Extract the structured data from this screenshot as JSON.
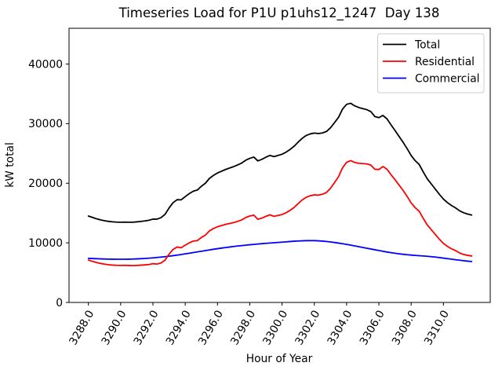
{
  "chart_data": {
    "type": "line",
    "title": "Timeseries Load for P1U p1uhs12_1247  Day 138",
    "xlabel": "Hour of Year",
    "ylabel": "kW total",
    "grid": false,
    "legend_position": "upper right",
    "x_tick_rotation": 60,
    "xlim": [
      3286.8,
      3312.9
    ],
    "ylim": [
      0,
      46000
    ],
    "xticks": [
      3288,
      3290,
      3292,
      3294,
      3296,
      3298,
      3300,
      3302,
      3304,
      3306,
      3308,
      3310
    ],
    "xtick_labels": [
      "3288.0",
      "3290.0",
      "3292.0",
      "3294.0",
      "3296.0",
      "3298.0",
      "3300.0",
      "3302.0",
      "3304.0",
      "3306.0",
      "3308.0",
      "3310.0"
    ],
    "yticks": [
      0,
      10000,
      20000,
      30000,
      40000
    ],
    "ytick_labels": [
      "0",
      "10000",
      "20000",
      "30000",
      "40000"
    ],
    "x": [
      3288.0,
      3288.25,
      3288.5,
      3288.75,
      3289.0,
      3289.25,
      3289.5,
      3289.75,
      3290.0,
      3290.25,
      3290.5,
      3290.75,
      3291.0,
      3291.25,
      3291.5,
      3291.75,
      3292.0,
      3292.25,
      3292.5,
      3292.75,
      3293.0,
      3293.25,
      3293.5,
      3293.75,
      3294.0,
      3294.25,
      3294.5,
      3294.75,
      3295.0,
      3295.25,
      3295.5,
      3295.75,
      3296.0,
      3296.25,
      3296.5,
      3296.75,
      3297.0,
      3297.25,
      3297.5,
      3297.75,
      3298.0,
      3298.25,
      3298.5,
      3298.75,
      3299.0,
      3299.25,
      3299.5,
      3299.75,
      3300.0,
      3300.25,
      3300.5,
      3300.75,
      3301.0,
      3301.25,
      3301.5,
      3301.75,
      3302.0,
      3302.25,
      3302.5,
      3302.75,
      3303.0,
      3303.25,
      3303.5,
      3303.75,
      3304.0,
      3304.25,
      3304.5,
      3304.75,
      3305.0,
      3305.25,
      3305.5,
      3305.75,
      3306.0,
      3306.25,
      3306.5,
      3306.75,
      3307.0,
      3307.25,
      3307.5,
      3307.75,
      3308.0,
      3308.25,
      3308.5,
      3308.75,
      3309.0,
      3309.25,
      3309.5,
      3309.75,
      3310.0,
      3310.25,
      3310.5,
      3310.75,
      3311.0,
      3311.25,
      3311.5,
      3311.75
    ],
    "series": [
      {
        "name": "Total",
        "color": "#000000",
        "values": [
          14500,
          14270,
          14040,
          13860,
          13710,
          13600,
          13530,
          13480,
          13460,
          13480,
          13460,
          13460,
          13520,
          13590,
          13680,
          13790,
          13980,
          13980,
          14230,
          14780,
          15860,
          16750,
          17240,
          17220,
          17750,
          18260,
          18670,
          18860,
          19490,
          20000,
          20810,
          21320,
          21720,
          22020,
          22310,
          22550,
          22790,
          23070,
          23390,
          23860,
          24180,
          24390,
          23750,
          24010,
          24370,
          24670,
          24470,
          24670,
          24870,
          25220,
          25670,
          26220,
          26910,
          27540,
          28020,
          28280,
          28420,
          28340,
          28440,
          28680,
          29300,
          30160,
          31060,
          32450,
          33240,
          33420,
          32990,
          32710,
          32530,
          32350,
          32020,
          31190,
          31010,
          31380,
          30810,
          29800,
          28850,
          27860,
          26880,
          25810,
          24650,
          23790,
          23140,
          21890,
          20740,
          19880,
          19010,
          18130,
          17340,
          16750,
          16260,
          15870,
          15380,
          15050,
          14830,
          14670
        ]
      },
      {
        "name": "Residential",
        "color": "#ff0000",
        "values": [
          7100,
          6900,
          6700,
          6550,
          6420,
          6330,
          6270,
          6230,
          6210,
          6230,
          6200,
          6180,
          6210,
          6250,
          6300,
          6360,
          6500,
          6440,
          6620,
          7100,
          8100,
          8900,
          9300,
          9180,
          9600,
          10000,
          10300,
          10380,
          10900,
          11300,
          12000,
          12400,
          12700,
          12900,
          13100,
          13250,
          13400,
          13600,
          13850,
          14250,
          14500,
          14650,
          13950,
          14150,
          14450,
          14700,
          14450,
          14600,
          14750,
          15050,
          15450,
          15950,
          16600,
          17200,
          17650,
          17900,
          18050,
          18000,
          18150,
          18450,
          19150,
          20100,
          21100,
          22600,
          23500,
          23800,
          23500,
          23350,
          23300,
          23250,
          23050,
          22350,
          22300,
          22800,
          22350,
          21450,
          20600,
          19700,
          18800,
          17800,
          16700,
          15900,
          15300,
          14100,
          13000,
          12200,
          11400,
          10600,
          9900,
          9400,
          9000,
          8700,
          8300,
          8050,
          7900,
          7800
        ]
      },
      {
        "name": "Commercial",
        "color": "#0000ff",
        "values": [
          7400,
          7370,
          7340,
          7310,
          7290,
          7270,
          7260,
          7250,
          7250,
          7250,
          7260,
          7280,
          7310,
          7340,
          7380,
          7430,
          7480,
          7540,
          7610,
          7680,
          7760,
          7850,
          7940,
          8040,
          8150,
          8260,
          8370,
          8480,
          8590,
          8700,
          8810,
          8920,
          9020,
          9120,
          9210,
          9300,
          9390,
          9470,
          9540,
          9610,
          9680,
          9740,
          9800,
          9860,
          9920,
          9970,
          10020,
          10070,
          10120,
          10170,
          10220,
          10270,
          10310,
          10340,
          10370,
          10380,
          10370,
          10340,
          10290,
          10230,
          10150,
          10060,
          9960,
          9850,
          9740,
          9620,
          9490,
          9360,
          9230,
          9100,
          8970,
          8840,
          8710,
          8580,
          8460,
          8350,
          8250,
          8160,
          8080,
          8010,
          7950,
          7890,
          7840,
          7790,
          7740,
          7680,
          7610,
          7530,
          7440,
          7350,
          7260,
          7170,
          7080,
          7000,
          6930,
          6870
        ]
      }
    ]
  }
}
